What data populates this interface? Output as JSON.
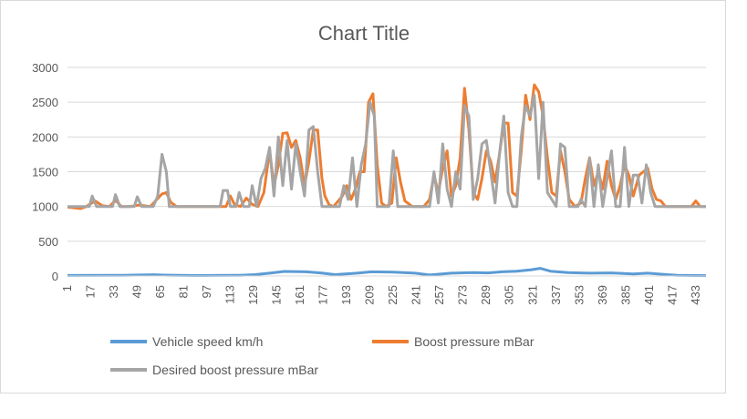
{
  "chart_data": {
    "type": "line",
    "title": "Chart Title",
    "xlabel": "",
    "ylabel": "",
    "ylim": [
      0,
      3000
    ],
    "yticks": [
      0,
      500,
      1000,
      1500,
      2000,
      2500,
      3000
    ],
    "x_range": [
      1,
      440
    ],
    "x_tick_labels": [
      "1",
      "17",
      "33",
      "49",
      "65",
      "81",
      "97",
      "113",
      "129",
      "145",
      "161",
      "177",
      "193",
      "209",
      "225",
      "241",
      "257",
      "273",
      "289",
      "305",
      "321",
      "337",
      "353",
      "369",
      "385",
      "401",
      "417",
      "433"
    ],
    "grid": "horizontal",
    "legend_position": "bottom",
    "colors": {
      "speed": "#5b9bd5",
      "boost": "#ed7d31",
      "desired": "#a5a5a5"
    },
    "series": [
      {
        "name": "Vehicle speed km/h",
        "color": "#5b9bd5",
        "points": [
          [
            1,
            8
          ],
          [
            40,
            10
          ],
          [
            60,
            18
          ],
          [
            70,
            12
          ],
          [
            90,
            6
          ],
          [
            120,
            10
          ],
          [
            130,
            20
          ],
          [
            140,
            40
          ],
          [
            150,
            65
          ],
          [
            165,
            60
          ],
          [
            175,
            45
          ],
          [
            185,
            20
          ],
          [
            200,
            40
          ],
          [
            210,
            60
          ],
          [
            225,
            55
          ],
          [
            240,
            40
          ],
          [
            250,
            15
          ],
          [
            265,
            40
          ],
          [
            280,
            50
          ],
          [
            290,
            45
          ],
          [
            300,
            60
          ],
          [
            310,
            70
          ],
          [
            320,
            90
          ],
          [
            326,
            110
          ],
          [
            333,
            70
          ],
          [
            345,
            50
          ],
          [
            360,
            40
          ],
          [
            375,
            45
          ],
          [
            390,
            30
          ],
          [
            400,
            40
          ],
          [
            410,
            25
          ],
          [
            420,
            10
          ],
          [
            440,
            5
          ]
        ]
      },
      {
        "name": "Boost pressure mBar",
        "color": "#ed7d31",
        "points": [
          [
            1,
            990
          ],
          [
            10,
            970
          ],
          [
            14,
            1000
          ],
          [
            20,
            1080
          ],
          [
            25,
            1010
          ],
          [
            30,
            1000
          ],
          [
            34,
            1090
          ],
          [
            38,
            1000
          ],
          [
            44,
            1000
          ],
          [
            50,
            1020
          ],
          [
            58,
            1000
          ],
          [
            66,
            1180
          ],
          [
            69,
            1200
          ],
          [
            72,
            1060
          ],
          [
            76,
            1000
          ],
          [
            110,
            1000
          ],
          [
            113,
            1150
          ],
          [
            116,
            1020
          ],
          [
            120,
            1000
          ],
          [
            124,
            1120
          ],
          [
            128,
            1030
          ],
          [
            132,
            1000
          ],
          [
            136,
            1200
          ],
          [
            140,
            1800
          ],
          [
            143,
            1300
          ],
          [
            146,
            1600
          ],
          [
            149,
            2050
          ],
          [
            152,
            2060
          ],
          [
            155,
            1850
          ],
          [
            158,
            1950
          ],
          [
            161,
            1700
          ],
          [
            164,
            1300
          ],
          [
            167,
            1650
          ],
          [
            170,
            2100
          ],
          [
            173,
            2100
          ],
          [
            176,
            1400
          ],
          [
            178,
            1150
          ],
          [
            181,
            1020
          ],
          [
            184,
            1000
          ],
          [
            190,
            1150
          ],
          [
            193,
            1300
          ],
          [
            196,
            1100
          ],
          [
            199,
            1250
          ],
          [
            202,
            1500
          ],
          [
            205,
            1500
          ],
          [
            208,
            2500
          ],
          [
            211,
            2620
          ],
          [
            214,
            1600
          ],
          [
            217,
            1050
          ],
          [
            220,
            1000
          ],
          [
            224,
            1050
          ],
          [
            227,
            1700
          ],
          [
            230,
            1350
          ],
          [
            233,
            1080
          ],
          [
            238,
            1000
          ],
          [
            246,
            1000
          ],
          [
            250,
            1100
          ],
          [
            253,
            1450
          ],
          [
            256,
            1200
          ],
          [
            259,
            1550
          ],
          [
            262,
            1800
          ],
          [
            265,
            1150
          ],
          [
            268,
            1300
          ],
          [
            271,
            1700
          ],
          [
            274,
            2700
          ],
          [
            277,
            2100
          ],
          [
            280,
            1200
          ],
          [
            283,
            1100
          ],
          [
            286,
            1400
          ],
          [
            289,
            1800
          ],
          [
            292,
            1650
          ],
          [
            295,
            1350
          ],
          [
            298,
            1750
          ],
          [
            301,
            2200
          ],
          [
            304,
            2200
          ],
          [
            307,
            1200
          ],
          [
            310,
            1150
          ],
          [
            313,
            1800
          ],
          [
            316,
            2600
          ],
          [
            319,
            2250
          ],
          [
            322,
            2750
          ],
          [
            325,
            2650
          ],
          [
            328,
            2300
          ],
          [
            331,
            1700
          ],
          [
            334,
            1200
          ],
          [
            337,
            1150
          ],
          [
            340,
            1800
          ],
          [
            343,
            1500
          ],
          [
            346,
            1100
          ],
          [
            350,
            1000
          ],
          [
            354,
            1050
          ],
          [
            357,
            1400
          ],
          [
            360,
            1700
          ],
          [
            363,
            1300
          ],
          [
            366,
            1500
          ],
          [
            369,
            1250
          ],
          [
            372,
            1650
          ],
          [
            375,
            1300
          ],
          [
            378,
            1100
          ],
          [
            381,
            1300
          ],
          [
            384,
            1600
          ],
          [
            387,
            1450
          ],
          [
            390,
            1150
          ],
          [
            394,
            1450
          ],
          [
            397,
            1500
          ],
          [
            400,
            1550
          ],
          [
            403,
            1250
          ],
          [
            406,
            1100
          ],
          [
            409,
            1080
          ],
          [
            412,
            1000
          ],
          [
            430,
            1000
          ],
          [
            433,
            1080
          ],
          [
            436,
            1000
          ],
          [
            440,
            1000
          ]
        ]
      },
      {
        "name": "Desired boost pressure mBar",
        "color": "#a5a5a5",
        "points": [
          [
            1,
            1000
          ],
          [
            16,
            1000
          ],
          [
            18,
            1150
          ],
          [
            21,
            1000
          ],
          [
            32,
            1000
          ],
          [
            34,
            1170
          ],
          [
            37,
            1000
          ],
          [
            47,
            1000
          ],
          [
            49,
            1140
          ],
          [
            52,
            1000
          ],
          [
            60,
            1000
          ],
          [
            63,
            1150
          ],
          [
            66,
            1750
          ],
          [
            69,
            1500
          ],
          [
            71,
            1000
          ],
          [
            106,
            1000
          ],
          [
            108,
            1230
          ],
          [
            111,
            1230
          ],
          [
            113,
            1000
          ],
          [
            117,
            1000
          ],
          [
            119,
            1200
          ],
          [
            122,
            1000
          ],
          [
            126,
            1000
          ],
          [
            128,
            1300
          ],
          [
            131,
            1000
          ],
          [
            134,
            1400
          ],
          [
            137,
            1550
          ],
          [
            140,
            1850
          ],
          [
            143,
            1150
          ],
          [
            146,
            2000
          ],
          [
            149,
            1300
          ],
          [
            152,
            1950
          ],
          [
            155,
            1250
          ],
          [
            158,
            1900
          ],
          [
            161,
            1500
          ],
          [
            164,
            1150
          ],
          [
            167,
            2100
          ],
          [
            170,
            2150
          ],
          [
            173,
            1500
          ],
          [
            176,
            1000
          ],
          [
            188,
            1000
          ],
          [
            191,
            1300
          ],
          [
            194,
            1100
          ],
          [
            197,
            1700
          ],
          [
            200,
            1000
          ],
          [
            203,
            1600
          ],
          [
            206,
            1900
          ],
          [
            209,
            2500
          ],
          [
            212,
            2300
          ],
          [
            214,
            1000
          ],
          [
            222,
            1000
          ],
          [
            225,
            1800
          ],
          [
            228,
            1000
          ],
          [
            240,
            1000
          ],
          [
            243,
            1000
          ],
          [
            250,
            1000
          ],
          [
            253,
            1500
          ],
          [
            256,
            1050
          ],
          [
            259,
            1900
          ],
          [
            262,
            1250
          ],
          [
            265,
            1000
          ],
          [
            268,
            1500
          ],
          [
            271,
            1250
          ],
          [
            274,
            2450
          ],
          [
            277,
            2300
          ],
          [
            280,
            1100
          ],
          [
            283,
            1400
          ],
          [
            286,
            1900
          ],
          [
            289,
            1950
          ],
          [
            292,
            1500
          ],
          [
            295,
            1050
          ],
          [
            298,
            1750
          ],
          [
            301,
            2300
          ],
          [
            304,
            1200
          ],
          [
            307,
            1000
          ],
          [
            310,
            1000
          ],
          [
            313,
            2000
          ],
          [
            316,
            2450
          ],
          [
            319,
            2300
          ],
          [
            322,
            2600
          ],
          [
            325,
            1400
          ],
          [
            328,
            2500
          ],
          [
            331,
            1200
          ],
          [
            334,
            1100
          ],
          [
            337,
            1000
          ],
          [
            340,
            1900
          ],
          [
            343,
            1850
          ],
          [
            346,
            1000
          ],
          [
            352,
            1000
          ],
          [
            354,
            1100
          ],
          [
            357,
            1000
          ],
          [
            360,
            1700
          ],
          [
            363,
            1000
          ],
          [
            366,
            1600
          ],
          [
            369,
            1000
          ],
          [
            372,
            1400
          ],
          [
            375,
            1800
          ],
          [
            378,
            1000
          ],
          [
            381,
            1000
          ],
          [
            384,
            1850
          ],
          [
            387,
            1000
          ],
          [
            390,
            1450
          ],
          [
            393,
            1450
          ],
          [
            396,
            1050
          ],
          [
            399,
            1600
          ],
          [
            402,
            1200
          ],
          [
            405,
            1000
          ],
          [
            440,
            1000
          ]
        ]
      }
    ]
  }
}
